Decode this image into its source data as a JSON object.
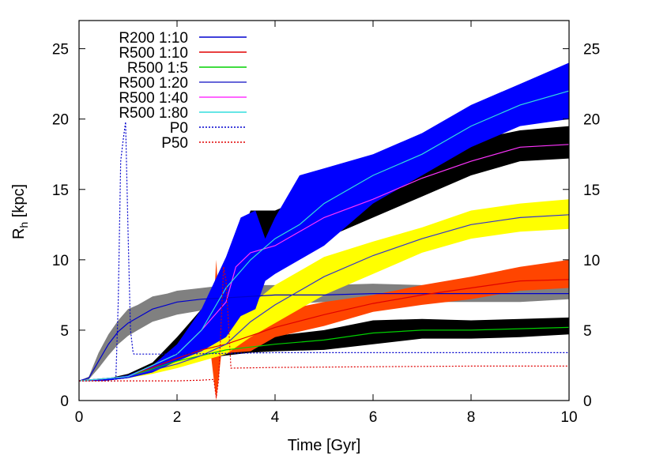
{
  "chart_data": {
    "type": "line",
    "title": "",
    "xlabel": "Time [Gyr]",
    "ylabel": "R",
    "ylabel_sub": "h",
    "ylabel_unit": " [kpc]",
    "xlim": [
      0,
      10
    ],
    "ylim": [
      0,
      27
    ],
    "xticks": [
      "0",
      "2",
      "4",
      "6",
      "8",
      "10"
    ],
    "yticks": [
      "0",
      "5",
      "10",
      "15",
      "20",
      "25"
    ],
    "y2ticks": [
      "0",
      "5",
      "10",
      "15",
      "20",
      "25"
    ],
    "grid": false,
    "legend_position": "top-left",
    "bands": [
      {
        "color": "#808080",
        "x": [
          0,
          0.2,
          0.4,
          0.6,
          0.8,
          1.0,
          1.2,
          1.5,
          1.8,
          2.0,
          2.5,
          3.0,
          4.0,
          5.0,
          6.0,
          7.0,
          8.0,
          9.0,
          10.0
        ],
        "lower": [
          1.4,
          1.5,
          2.3,
          3.2,
          4.0,
          4.6,
          5.0,
          5.6,
          5.9,
          6.1,
          6.4,
          6.6,
          6.8,
          7.0,
          7.0,
          7.0,
          7.0,
          7.0,
          7.2
        ],
        "upper": [
          1.4,
          1.7,
          3.4,
          4.7,
          5.7,
          6.5,
          6.8,
          7.4,
          7.6,
          7.8,
          8.0,
          8.2,
          8.2,
          8.2,
          8.3,
          8.2,
          8.2,
          8.3,
          8.3
        ]
      },
      {
        "color": "#000000",
        "x": [
          0,
          0.5,
          1.0,
          1.5,
          2.0,
          2.5,
          3.0,
          3.5,
          4.0,
          5.0,
          6.0,
          7.0,
          8.0,
          9.0,
          10.0
        ],
        "lower": [
          1.4,
          1.4,
          1.6,
          2.0,
          2.6,
          3.0,
          3.2,
          3.4,
          3.5,
          3.6,
          4.0,
          4.4,
          4.4,
          4.5,
          4.7
        ],
        "upper": [
          1.4,
          1.4,
          1.8,
          2.4,
          3.0,
          3.7,
          4.0,
          4.3,
          4.6,
          5.0,
          5.7,
          5.8,
          5.7,
          5.8,
          5.9
        ]
      },
      {
        "color": "#ff4500",
        "x": [
          0,
          0.5,
          1.0,
          1.5,
          2.0,
          2.5,
          2.7,
          2.8,
          2.9,
          3.0,
          3.1,
          3.5,
          4.0,
          5.0,
          6.0,
          7.0,
          8.0,
          9.0,
          10.0
        ],
        "lower": [
          1.4,
          1.4,
          1.6,
          2.0,
          2.7,
          3.2,
          3.0,
          0.0,
          3.2,
          3.3,
          3.4,
          3.5,
          4.5,
          5.3,
          6.3,
          6.8,
          7.2,
          7.8,
          8.0
        ],
        "upper": [
          1.4,
          1.5,
          1.8,
          2.4,
          3.3,
          4.0,
          4.0,
          10.0,
          4.2,
          9.5,
          4.5,
          5.8,
          6.3,
          7.0,
          7.5,
          8.2,
          8.8,
          9.5,
          10.0
        ]
      },
      {
        "color": "#ffff00",
        "x": [
          0,
          0.5,
          1.0,
          1.5,
          2.0,
          2.5,
          3.0,
          3.5,
          4.0,
          5.0,
          6.0,
          7.0,
          8.0,
          9.0,
          10.0
        ],
        "lower": [
          1.4,
          1.4,
          1.6,
          1.9,
          2.3,
          2.8,
          3.3,
          4.5,
          5.5,
          7.5,
          9.0,
          10.5,
          11.5,
          12.0,
          12.2
        ],
        "upper": [
          1.4,
          1.5,
          1.8,
          2.4,
          3.0,
          3.8,
          4.8,
          6.8,
          8.2,
          10.2,
          11.3,
          12.3,
          13.5,
          14.0,
          14.3
        ]
      },
      {
        "color": "#000000",
        "x": [
          0,
          0.5,
          1.0,
          1.5,
          2.0,
          2.5,
          3.0,
          3.5,
          4.0,
          5.0,
          6.0,
          7.0,
          8.0,
          9.0,
          10.0
        ],
        "lower": [
          1.4,
          1.4,
          1.6,
          2.0,
          3.0,
          4.0,
          6.5,
          8.0,
          9.5,
          11.5,
          13.0,
          14.5,
          16.0,
          17.0,
          17.2
        ],
        "upper": [
          1.4,
          1.5,
          1.9,
          2.7,
          4.5,
          6.5,
          9.0,
          13.5,
          13.5,
          15.0,
          15.5,
          17.5,
          18.5,
          19.2,
          19.5
        ]
      },
      {
        "color": "#0000ff",
        "x": [
          0,
          0.5,
          1.0,
          1.5,
          2.0,
          2.5,
          3.0,
          3.3,
          3.6,
          3.8,
          4.0,
          4.5,
          5.0,
          6.0,
          7.0,
          8.0,
          9.0,
          10.0
        ],
        "lower": [
          1.4,
          1.4,
          1.6,
          2.0,
          2.8,
          3.5,
          4.5,
          6.0,
          6.5,
          8.5,
          9.0,
          10.0,
          11.0,
          14.0,
          16.0,
          18.0,
          19.5,
          20.0
        ],
        "upper": [
          1.4,
          1.5,
          1.8,
          2.5,
          4.0,
          6.5,
          10.2,
          13.0,
          13.5,
          11.5,
          13.0,
          16.0,
          16.5,
          17.5,
          19.0,
          21.0,
          22.5,
          24.0
        ]
      }
    ],
    "series": [
      {
        "name": "R200 1:10",
        "color": "#0000cd",
        "dash": false,
        "x": [
          0,
          0.2,
          0.4,
          0.6,
          0.8,
          1.0,
          1.2,
          1.5,
          1.8,
          2.0,
          2.5,
          3.0,
          4.0,
          5.0,
          6.0,
          7.0,
          8.0,
          9.0,
          10.0
        ],
        "y": [
          1.4,
          1.6,
          2.8,
          4.0,
          4.9,
          5.5,
          5.9,
          6.5,
          6.8,
          7.0,
          7.2,
          7.3,
          7.5,
          7.5,
          7.6,
          7.6,
          7.6,
          7.6,
          7.6
        ]
      },
      {
        "name": "R500 1:10",
        "color": "#e00000",
        "dash": false,
        "x": [
          0,
          1.0,
          2.0,
          2.5,
          3.0,
          3.5,
          4.0,
          5.0,
          6.0,
          7.0,
          8.0,
          9.0,
          10.0
        ],
        "y": [
          1.4,
          1.7,
          3.0,
          3.6,
          4.0,
          4.6,
          5.2,
          6.1,
          6.9,
          7.5,
          8.0,
          8.5,
          8.6
        ]
      },
      {
        "name": "R500 1:5",
        "color": "#00d000",
        "dash": false,
        "x": [
          0,
          1.0,
          2.0,
          3.0,
          4.0,
          5.0,
          6.0,
          7.0,
          8.0,
          9.0,
          10.0
        ],
        "y": [
          1.4,
          1.7,
          2.8,
          3.6,
          4.0,
          4.3,
          4.8,
          5.0,
          5.0,
          5.1,
          5.2
        ]
      },
      {
        "name": "R500 1:20",
        "color": "#3333cc",
        "dash": false,
        "x": [
          0,
          1.0,
          2.0,
          2.5,
          3.0,
          3.5,
          4.0,
          5.0,
          6.0,
          7.0,
          8.0,
          9.0,
          10.0
        ],
        "y": [
          1.4,
          1.7,
          2.6,
          3.2,
          4.0,
          5.6,
          6.8,
          8.8,
          10.3,
          11.5,
          12.5,
          13.0,
          13.2
        ]
      },
      {
        "name": "R500 1:40",
        "color": "#ff33ff",
        "dash": false,
        "x": [
          0,
          1.0,
          2.0,
          2.5,
          3.0,
          3.2,
          3.5,
          4.0,
          5.0,
          6.0,
          7.0,
          8.0,
          9.0,
          10.0
        ],
        "y": [
          1.4,
          1.7,
          3.3,
          5.0,
          7.0,
          9.5,
          10.5,
          11.0,
          13.0,
          14.3,
          15.8,
          17.0,
          18.0,
          18.2
        ]
      },
      {
        "name": "R500 1:80",
        "color": "#33dddd",
        "dash": false,
        "x": [
          0,
          1.0,
          2.0,
          2.5,
          3.0,
          3.5,
          4.0,
          4.5,
          5.0,
          6.0,
          7.0,
          8.0,
          9.0,
          10.0
        ],
        "y": [
          1.4,
          1.7,
          3.3,
          5.0,
          8.0,
          10.0,
          11.5,
          12.5,
          14.0,
          16.0,
          17.5,
          19.5,
          21.0,
          22.0
        ]
      },
      {
        "name": "P0",
        "color": "#0000cd",
        "dash": true,
        "x": [
          0,
          0.75,
          0.8,
          0.85,
          0.9,
          0.95,
          1.0,
          1.05,
          1.1,
          1.12,
          2.0,
          4.0,
          6.0,
          8.0,
          10.0
        ],
        "y": [
          1.4,
          1.4,
          7.0,
          17.0,
          18.5,
          19.8,
          12.0,
          5.0,
          3.5,
          3.3,
          3.3,
          3.4,
          3.4,
          3.4,
          3.4
        ]
      },
      {
        "name": "P50",
        "color": "#e00000",
        "dash": true,
        "x": [
          0,
          2.0,
          2.5,
          2.75,
          2.8,
          2.85,
          2.95,
          3.0,
          3.05,
          3.1,
          4.0,
          6.0,
          8.0,
          10.0
        ],
        "y": [
          1.4,
          1.4,
          1.45,
          1.5,
          0.2,
          1.5,
          9.5,
          8.5,
          5.5,
          2.3,
          2.35,
          2.4,
          2.45,
          2.45
        ]
      }
    ]
  }
}
